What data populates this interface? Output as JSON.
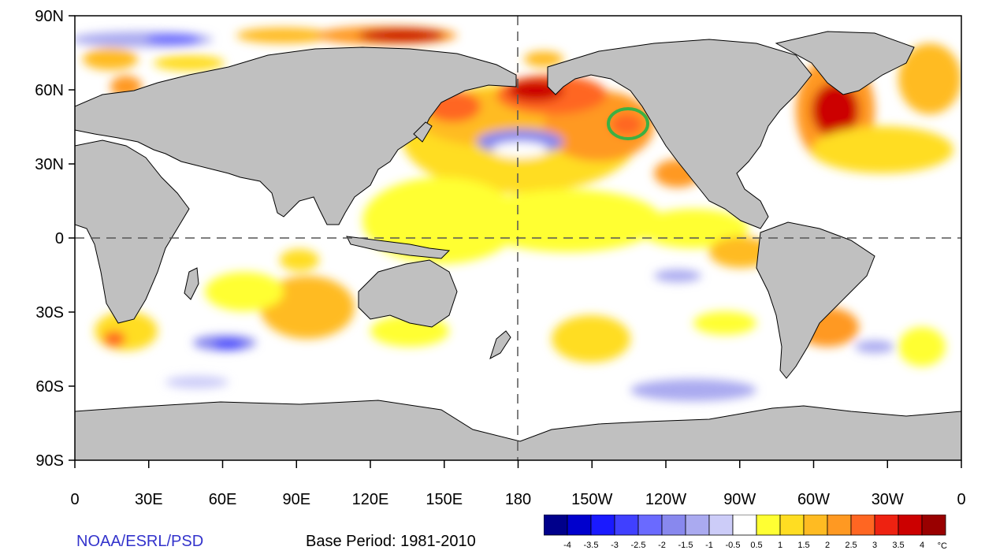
{
  "map": {
    "lat_labels": [
      "90N",
      "60N",
      "30N",
      "0",
      "30S",
      "60S",
      "90S"
    ],
    "lon_labels": [
      "0",
      "30E",
      "60E",
      "90E",
      "120E",
      "150E",
      "180",
      "150W",
      "120W",
      "90W",
      "60W",
      "30W",
      "0"
    ],
    "colors": {
      "land": "#c0c0c0",
      "ocean": "#ffffff",
      "highlight_circle": "#3cb043",
      "frame": "#000000"
    }
  },
  "footer": {
    "source": "NOAA/ESRL/PSD",
    "base_period": "Base Period: 1981-2010"
  },
  "colorbar": {
    "unit": "°C",
    "tick_labels": [
      "-4",
      "-3.5",
      "-3",
      "-2.5",
      "-2",
      "-1.5",
      "-1",
      "-0.5",
      "0.5",
      "1",
      "1.5",
      "2",
      "2.5",
      "3",
      "3.5",
      "4"
    ],
    "colors": [
      "#00008b",
      "#0000cd",
      "#1a1aff",
      "#4040ff",
      "#6a6aff",
      "#8888ee",
      "#aaaaf0",
      "#ccccf8",
      "#ffffff",
      "#ffff33",
      "#ffdd22",
      "#ffbb22",
      "#ff9922",
      "#ff6622",
      "#ee2211",
      "#cc0000",
      "#990000"
    ]
  }
}
